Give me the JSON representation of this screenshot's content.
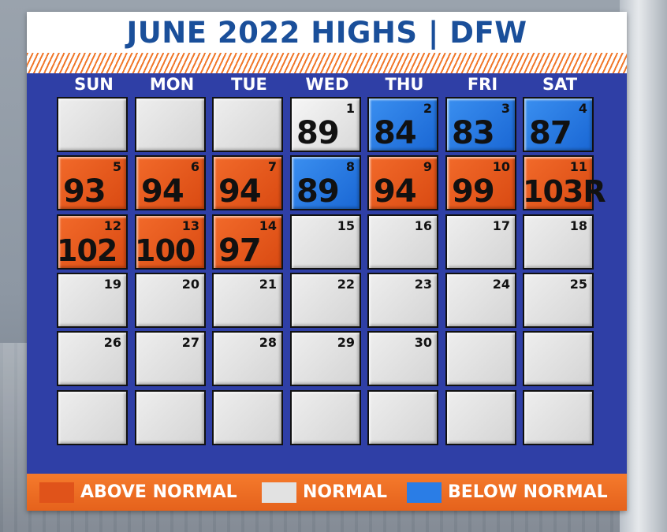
{
  "title": "JUNE 2022 HIGHS | DFW",
  "colors": {
    "above": "#e0531a",
    "normal": "#e2e2e2",
    "below": "#2a7de6",
    "header_text": "#1a4f9a",
    "calendar_bg": "#2f3fa6"
  },
  "weekdays": [
    "SUN",
    "MON",
    "TUE",
    "WED",
    "THU",
    "FRI",
    "SAT"
  ],
  "cells": [
    {
      "date": "",
      "temp": "",
      "status": "empty"
    },
    {
      "date": "",
      "temp": "",
      "status": "empty"
    },
    {
      "date": "",
      "temp": "",
      "status": "empty"
    },
    {
      "date": "1",
      "temp": "89",
      "status": "normal"
    },
    {
      "date": "2",
      "temp": "84",
      "status": "below"
    },
    {
      "date": "3",
      "temp": "83",
      "status": "below"
    },
    {
      "date": "4",
      "temp": "87",
      "status": "below"
    },
    {
      "date": "5",
      "temp": "93",
      "status": "above"
    },
    {
      "date": "6",
      "temp": "94",
      "status": "above"
    },
    {
      "date": "7",
      "temp": "94",
      "status": "above"
    },
    {
      "date": "8",
      "temp": "89",
      "status": "below"
    },
    {
      "date": "9",
      "temp": "94",
      "status": "above"
    },
    {
      "date": "10",
      "temp": "99",
      "status": "above"
    },
    {
      "date": "11",
      "temp": "103R",
      "status": "above"
    },
    {
      "date": "12",
      "temp": "102",
      "status": "above"
    },
    {
      "date": "13",
      "temp": "100",
      "status": "above"
    },
    {
      "date": "14",
      "temp": "97",
      "status": "above"
    },
    {
      "date": "15",
      "temp": "",
      "status": "empty"
    },
    {
      "date": "16",
      "temp": "",
      "status": "empty"
    },
    {
      "date": "17",
      "temp": "",
      "status": "empty"
    },
    {
      "date": "18",
      "temp": "",
      "status": "empty"
    },
    {
      "date": "19",
      "temp": "",
      "status": "empty"
    },
    {
      "date": "20",
      "temp": "",
      "status": "empty"
    },
    {
      "date": "21",
      "temp": "",
      "status": "empty"
    },
    {
      "date": "22",
      "temp": "",
      "status": "empty"
    },
    {
      "date": "23",
      "temp": "",
      "status": "empty"
    },
    {
      "date": "24",
      "temp": "",
      "status": "empty"
    },
    {
      "date": "25",
      "temp": "",
      "status": "empty"
    },
    {
      "date": "26",
      "temp": "",
      "status": "empty"
    },
    {
      "date": "27",
      "temp": "",
      "status": "empty"
    },
    {
      "date": "28",
      "temp": "",
      "status": "empty"
    },
    {
      "date": "29",
      "temp": "",
      "status": "empty"
    },
    {
      "date": "30",
      "temp": "",
      "status": "empty"
    },
    {
      "date": "",
      "temp": "",
      "status": "empty"
    },
    {
      "date": "",
      "temp": "",
      "status": "empty"
    },
    {
      "date": "",
      "temp": "",
      "status": "empty"
    },
    {
      "date": "",
      "temp": "",
      "status": "empty"
    },
    {
      "date": "",
      "temp": "",
      "status": "empty"
    },
    {
      "date": "",
      "temp": "",
      "status": "empty"
    },
    {
      "date": "",
      "temp": "",
      "status": "empty"
    },
    {
      "date": "",
      "temp": "",
      "status": "empty"
    },
    {
      "date": "",
      "temp": "",
      "status": "empty"
    }
  ],
  "legend": [
    {
      "label": "ABOVE NORMAL",
      "status": "above"
    },
    {
      "label": "NORMAL",
      "status": "normal"
    },
    {
      "label": "BELOW NORMAL",
      "status": "below"
    }
  ]
}
